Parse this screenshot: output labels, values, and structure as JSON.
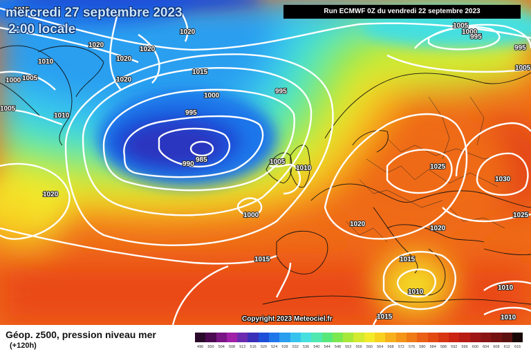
{
  "header": {
    "date": "mercredi 27 septembre 2023",
    "time": "2:00 locale",
    "run": "Run ECMWF 0Z du vendredi 22 septembre 2023"
  },
  "footer": {
    "title": "Géop. z500, pression niveau mer",
    "subtitle": "(+120h)",
    "copyright": "Copyright 2023 Meteociel.fr"
  },
  "isobar_labels": [
    "1015",
    "1020",
    "1020",
    "1020",
    "1010",
    "1005",
    "1000",
    "1005",
    "1010",
    "1020",
    "1020",
    "1015",
    "1000",
    "995",
    "995",
    "990",
    "985",
    "1005",
    "1010",
    "1000",
    "1020",
    "1005",
    "1000",
    "995",
    "995",
    "1005",
    "1025",
    "1030",
    "1025",
    "1020",
    "1020",
    "1015",
    "1015",
    "1010",
    "1015",
    "1010",
    "1010"
  ],
  "legend": {
    "colors": [
      "#2a0a2a",
      "#4b0a52",
      "#7a1585",
      "#a020a8",
      "#6b2bb0",
      "#3a2fb8",
      "#1e4fd8",
      "#1f76ea",
      "#2a9ff0",
      "#37c3ef",
      "#45dfe0",
      "#4ee8b0",
      "#58e87a",
      "#7be850",
      "#a8e83a",
      "#d2ea30",
      "#f3ea2a",
      "#f8d020",
      "#f7b01c",
      "#f49418",
      "#f07a16",
      "#ea6014",
      "#e24a12",
      "#d83612",
      "#cc2412",
      "#b81a14",
      "#a01616",
      "#8a1414",
      "#741212",
      "#5c1010",
      "#1a0808"
    ],
    "ticks": [
      "496",
      "500",
      "504",
      "508",
      "512",
      "516",
      "520",
      "524",
      "528",
      "532",
      "536",
      "540",
      "544",
      "548",
      "552",
      "556",
      "560",
      "564",
      "568",
      "572",
      "576",
      "580",
      "584",
      "588",
      "592",
      "596",
      "600",
      "604",
      "608",
      "612",
      "616"
    ]
  }
}
